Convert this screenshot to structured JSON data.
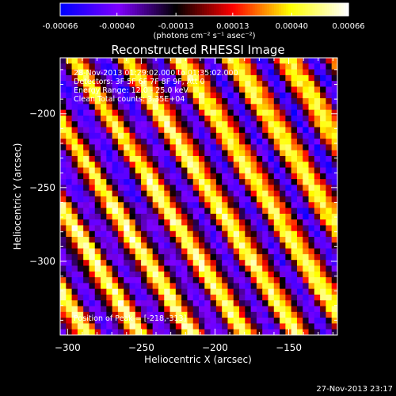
{
  "colorbar": {
    "tick_labels": [
      "-0.00066",
      "-0.00040",
      "-0.00013",
      "0.00013",
      "0.00040",
      "0.00066"
    ],
    "tick_values": [
      -0.00066,
      -0.0004,
      -0.00013,
      0.00013,
      0.0004,
      0.00066
    ],
    "range": [
      -0.00066,
      0.00066
    ],
    "units": "(photons cm⁻² s⁻¹ asec⁻²)",
    "colors": [
      "#0000ff",
      "#7f00ff",
      "#000000",
      "#ff0000",
      "#ffff00",
      "#ffffff"
    ]
  },
  "chart_data": {
    "type": "heatmap",
    "title": "Reconstructed RHESSI Image",
    "xlabel": "Heliocentric X (arcsec)",
    "ylabel": "Heliocentric Y (arcsec)",
    "xlim": [
      -305,
      -117
    ],
    "ylim": [
      -350,
      -162
    ],
    "xticks": [
      -300,
      -250,
      -200,
      -150
    ],
    "yticks": [
      -200,
      -250,
      -300
    ],
    "xtick_labels": [
      "−300",
      "−250",
      "−200",
      "−150"
    ],
    "ytick_labels": [
      "−200",
      "−250",
      "−300"
    ],
    "pattern": "diagonal fringes",
    "annotations": [
      "28-Nov-2013 01:29:02.000 to 01:35:02.000",
      "Detectors: 3F 5F 6F 7F 8F 9F, Att 0",
      "Energy Range: 12.0 - 25.0 keV",
      "Clean     Total counts: 3.35E+04"
    ],
    "peak_label": "Position of Peak = [-218,-313]"
  },
  "footer": {
    "timestamp": "27-Nov-2013 23:17"
  }
}
